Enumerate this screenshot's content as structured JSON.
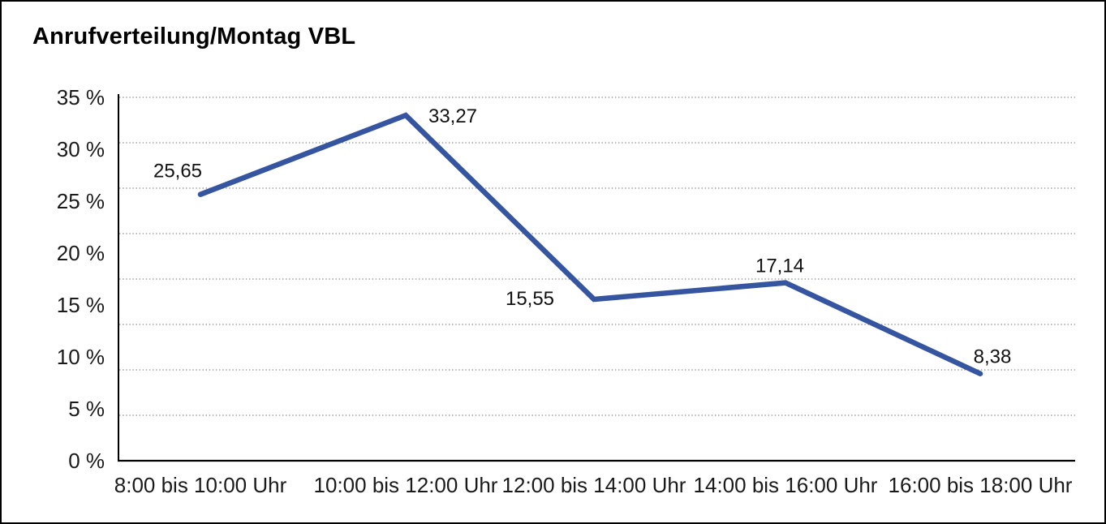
{
  "chart_data": {
    "type": "line",
    "title": "Anrufverteilung/Montag VBL",
    "categories": [
      "8:00 bis 10:00 Uhr",
      "10:00 bis 12:00 Uhr",
      "12:00 bis 14:00 Uhr",
      "14:00 bis 16:00 Uhr",
      "16:00 bis 18:00 Uhr"
    ],
    "values": [
      25.65,
      33.27,
      15.55,
      17.14,
      8.38
    ],
    "point_labels": [
      "25,65",
      "33,27",
      "15,55",
      "17,14",
      "8,38"
    ],
    "y_ticks": [
      {
        "value": 35,
        "label": "35 %"
      },
      {
        "value": 30,
        "label": "30 %"
      },
      {
        "value": 25,
        "label": "25 %"
      },
      {
        "value": 20,
        "label": "20 %"
      },
      {
        "value": 15,
        "label": "15 %"
      },
      {
        "value": 10,
        "label": "10 %"
      },
      {
        "value": 5,
        "label": "5 %"
      },
      {
        "value": 0,
        "label": "0 %"
      }
    ],
    "ylim": [
      0,
      35
    ],
    "xlabel": "",
    "ylabel": "",
    "grid": "horizontal-dotted-8-intervals",
    "legend_position": "none",
    "line_color": "#3555a0",
    "axis_color": "#000000",
    "gridline_color": "#8f8f8f",
    "text_color": "#1a1a1a"
  }
}
